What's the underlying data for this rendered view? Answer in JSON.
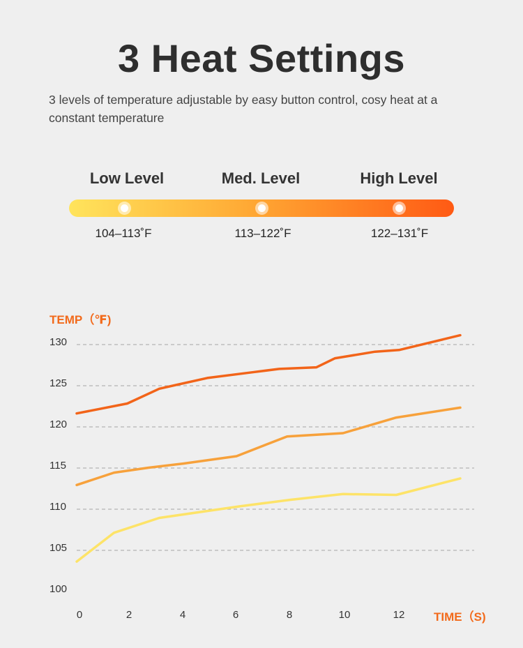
{
  "title": "3 Heat Settings",
  "subtitle": "3 levels of temperature adjustable by easy button control, cosy heat at a constant temperature",
  "levels": [
    {
      "label": "Low Level",
      "range": "104–113˚F"
    },
    {
      "label": "Med. Level",
      "range": "113–122˚F"
    },
    {
      "label": "High Level",
      "range": "122–131˚F"
    }
  ],
  "heat_bar": {
    "gradient_start": "#ffe45c",
    "gradient_mid": "#ffa733",
    "gradient_end": "#ff5a14"
  },
  "chart_data": {
    "type": "line",
    "ylabel": "TEMP（℉)",
    "xlabel": "TIME（S)",
    "ylim": [
      100,
      130
    ],
    "xlim": [
      0,
      14.4
    ],
    "x_ticks": [
      0,
      2,
      4,
      6,
      8,
      10,
      12
    ],
    "y_ticks": [
      100,
      105,
      110,
      115,
      120,
      125,
      130
    ],
    "grid": "horizontal dashed",
    "series": [
      {
        "color": "#f26419",
        "x": [
          0,
          1.9,
          3.1,
          4.9,
          6.6,
          7.6,
          9.0,
          9.7,
          11.2,
          12.1,
          14.4
        ],
        "y": [
          121.3,
          122.5,
          124.3,
          125.6,
          126.3,
          126.7,
          126.9,
          128.0,
          128.8,
          129.0,
          130.8
        ]
      },
      {
        "color": "#f7a13b",
        "x": [
          0,
          1.4,
          2.7,
          4.0,
          6.0,
          7.9,
          10.0,
          12.0,
          14.4
        ],
        "y": [
          112.6,
          114.1,
          114.7,
          115.2,
          116.1,
          118.5,
          118.9,
          120.8,
          122.0
        ]
      },
      {
        "color": "#fde368",
        "x": [
          0,
          1.4,
          3.1,
          6.1,
          8.0,
          10.0,
          12.0,
          14.4
        ],
        "y": [
          103.3,
          106.8,
          108.6,
          110.0,
          110.8,
          111.5,
          111.4,
          113.4
        ]
      }
    ]
  }
}
